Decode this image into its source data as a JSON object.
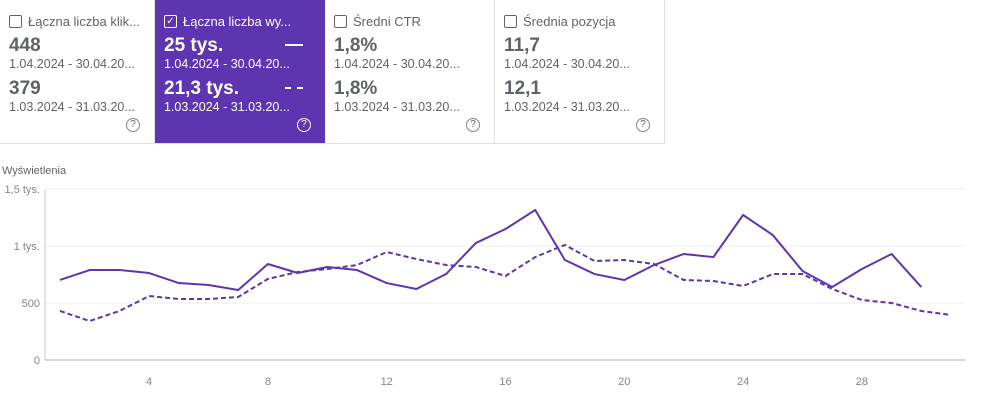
{
  "cards": [
    {
      "label": "Łączna liczba klik...",
      "checked": false,
      "current": "448",
      "current_range": "1.04.2024 - 30.04.20...",
      "previous": "379",
      "previous_range": "1.03.2024 - 31.03.20..."
    },
    {
      "label": "Łączna liczba wy...",
      "checked": true,
      "current": "25 tys.",
      "current_range": "1.04.2024 - 30.04.20...",
      "previous": "21,3 tys.",
      "previous_range": "1.03.2024 - 31.03.20..."
    },
    {
      "label": "Średni CTR",
      "checked": false,
      "current": "1,8%",
      "current_range": "1.04.2024 - 30.04.20...",
      "previous": "1,8%",
      "previous_range": "1.03.2024 - 31.03.20..."
    },
    {
      "label": "Średnia pozycja",
      "checked": false,
      "current": "11,7",
      "current_range": "1.04.2024 - 30.04.20...",
      "previous": "12,1",
      "previous_range": "1.03.2024 - 31.03.20..."
    }
  ],
  "help_glyph": "?",
  "check_glyph": "✓",
  "colors": {
    "accent": "#5e35b1"
  },
  "chart_data": {
    "type": "line",
    "ylabel": "Wyświetlenia",
    "ylim": [
      0,
      1500
    ],
    "yticks": [
      {
        "v": 0,
        "label": "0"
      },
      {
        "v": 500,
        "label": "500"
      },
      {
        "v": 1000,
        "label": "1 tys."
      },
      {
        "v": 1500,
        "label": "1,5 tys."
      }
    ],
    "xlim": [
      1,
      31
    ],
    "xticks": [
      4,
      8,
      12,
      16,
      20,
      24,
      28
    ],
    "series": [
      {
        "name": "1.04.2024 - 30.04.2024",
        "style": "solid",
        "values": [
          702,
          789,
          790,
          763,
          675,
          658,
          614,
          842,
          763,
          816,
          789,
          675,
          623,
          754,
          1026,
          1149,
          1316,
          877,
          754,
          702,
          833,
          930,
          903,
          1272,
          1096,
          781,
          640,
          798,
          930,
          640
        ]
      },
      {
        "name": "1.03.2024 - 31.03.2024",
        "style": "dashed",
        "values": [
          430,
          342,
          430,
          561,
          535,
          535,
          553,
          711,
          772,
          798,
          833,
          947,
          886,
          833,
          816,
          737,
          903,
          1009,
          868,
          877,
          842,
          702,
          693,
          649,
          754,
          754,
          623,
          526,
          500,
          430,
          395
        ]
      }
    ]
  }
}
